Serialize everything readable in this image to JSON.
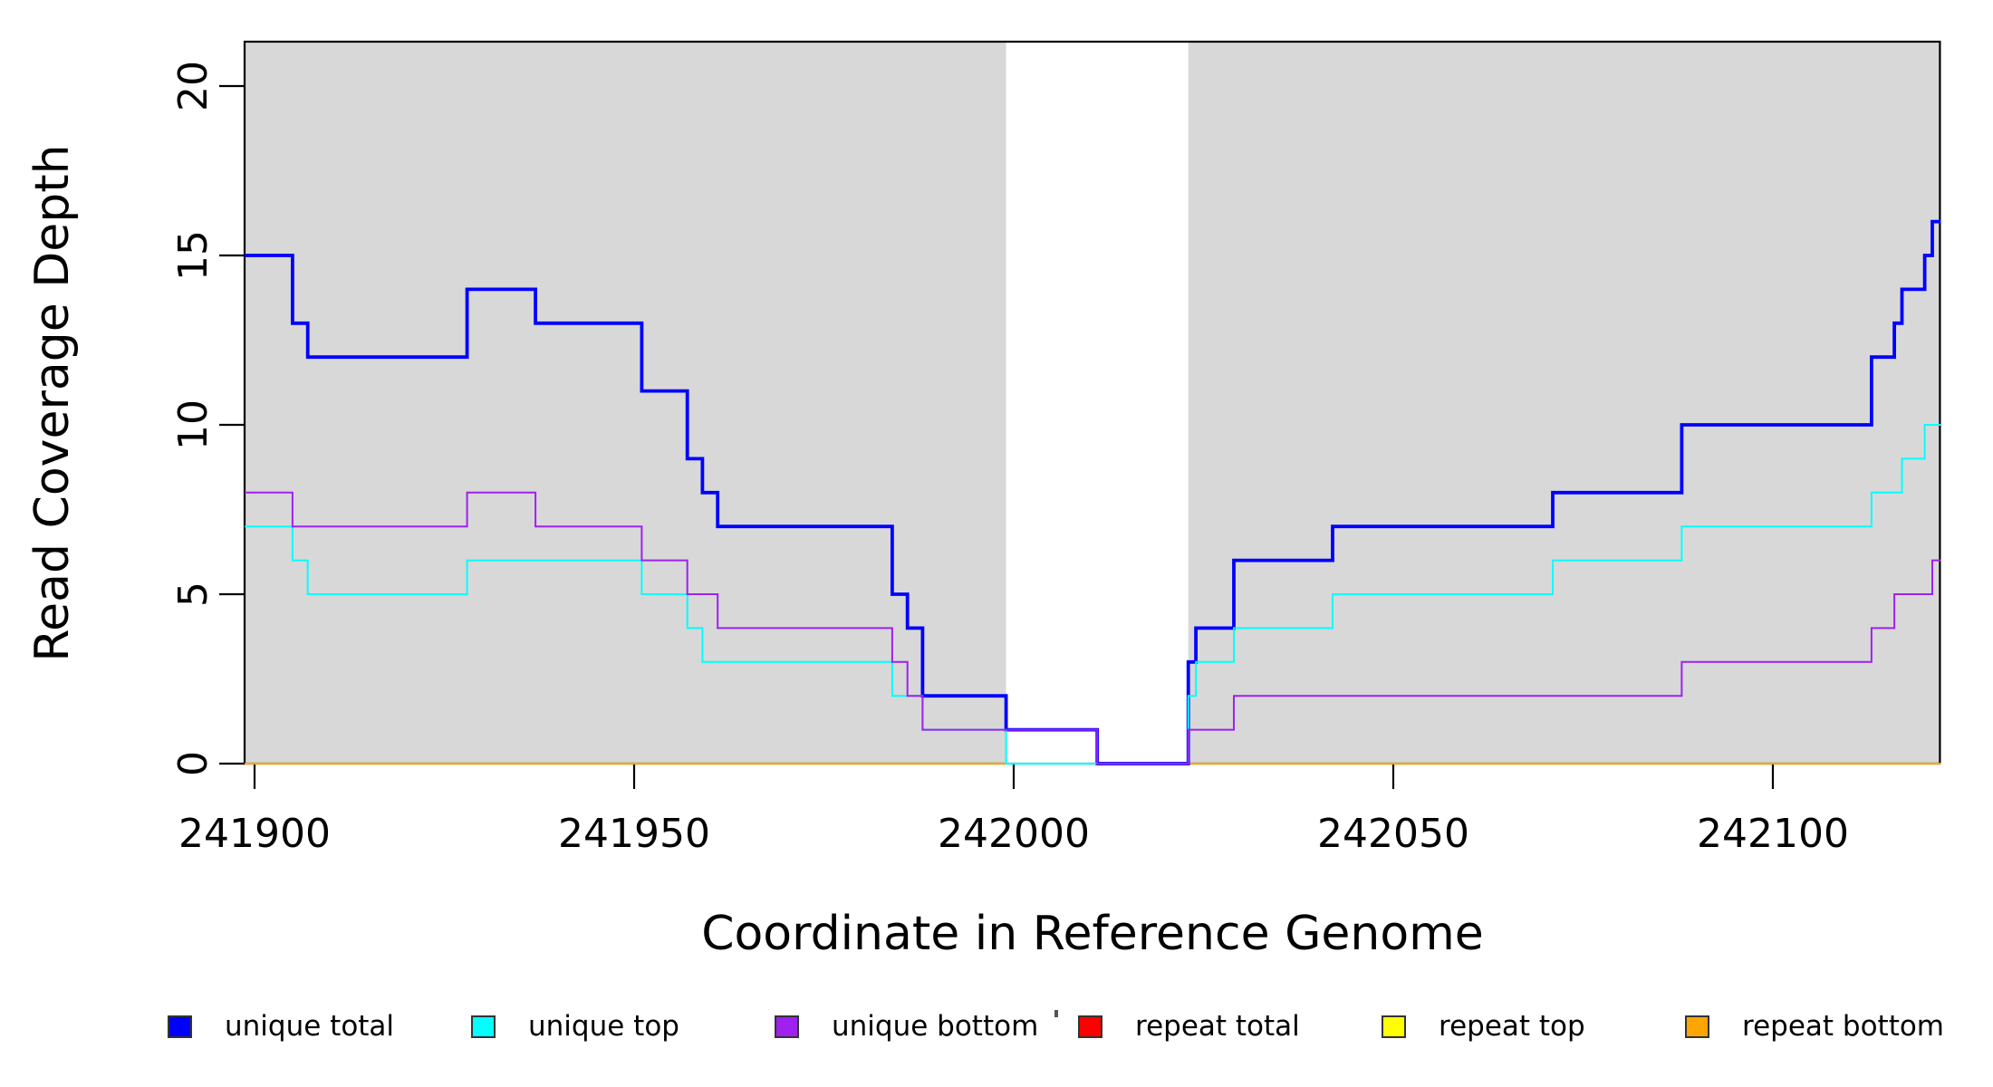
{
  "figure": {
    "title": "",
    "x_tick_labels": [
      "241900",
      "241950",
      "242000",
      "242050",
      "242100"
    ],
    "y_tick_labels": [
      "0",
      "5",
      "10",
      "15",
      "20"
    ]
  },
  "legend": {
    "items": [
      {
        "id": "unique-total",
        "label": "unique total",
        "color": "#0000FF"
      },
      {
        "id": "unique-top",
        "label": "unique top",
        "color": "#00FFFF"
      },
      {
        "id": "unique-bottom",
        "label": "unique bottom",
        "color": "#A020F0"
      },
      {
        "id": "repeat-total",
        "label": "repeat total",
        "color": "#FF0000"
      },
      {
        "id": "repeat-top",
        "label": "repeat top",
        "color": "#FFFF00"
      },
      {
        "id": "repeat-bottom",
        "label": "repeat bottom",
        "color": "#FFA500"
      }
    ]
  },
  "chart_data": {
    "type": "line",
    "step": true,
    "title": "",
    "xlabel": "Coordinate in Reference Genome",
    "ylabel": "Read Coverage Depth",
    "xlim": [
      241898.7,
      242122.1
    ],
    "ylim": [
      0,
      21.3
    ],
    "x_ticks": [
      241900,
      241950,
      242000,
      242050,
      242100
    ],
    "y_ticks": [
      0,
      5,
      10,
      15,
      20
    ],
    "grid": false,
    "legend_position": "bottom",
    "shaded_color": "#D8D8D8",
    "shaded_regions": [
      [
        241898.7,
        241999
      ],
      [
        242023,
        242122.1
      ]
    ],
    "series_draw_order": [
      "repeat total",
      "repeat top",
      "repeat bottom",
      "unique total",
      "unique top",
      "unique bottom"
    ],
    "series": [
      {
        "id": "unique-total",
        "name": "unique total",
        "color": "#0000FF",
        "width": 3.8,
        "steps": [
          [
            241898.7,
            15
          ],
          [
            241905,
            13
          ],
          [
            241907,
            12
          ],
          [
            241928,
            14
          ],
          [
            241937,
            13
          ],
          [
            241951,
            11
          ],
          [
            241957,
            9
          ],
          [
            241959,
            8
          ],
          [
            241961,
            7
          ],
          [
            241984,
            5
          ],
          [
            241986,
            4
          ],
          [
            241988,
            2
          ],
          [
            241999,
            1
          ],
          [
            242011,
            0
          ],
          [
            242023,
            3
          ],
          [
            242024,
            4
          ],
          [
            242029,
            6
          ],
          [
            242042,
            7
          ],
          [
            242071,
            8
          ],
          [
            242088,
            10
          ],
          [
            242113,
            12
          ],
          [
            242116,
            13
          ],
          [
            242117,
            14
          ],
          [
            242120,
            15
          ],
          [
            242121,
            16
          ],
          [
            242122.1,
            16
          ]
        ]
      },
      {
        "id": "unique-top",
        "name": "unique top",
        "color": "#00FFFF",
        "width": 2.0,
        "steps": [
          [
            241898.7,
            7
          ],
          [
            241905,
            6
          ],
          [
            241907,
            5
          ],
          [
            241928,
            6
          ],
          [
            241951,
            5
          ],
          [
            241957,
            4
          ],
          [
            241959,
            3
          ],
          [
            241984,
            2
          ],
          [
            241988,
            1
          ],
          [
            241999,
            0
          ],
          [
            242023,
            2
          ],
          [
            242024,
            3
          ],
          [
            242029,
            4
          ],
          [
            242042,
            5
          ],
          [
            242071,
            6
          ],
          [
            242088,
            7
          ],
          [
            242113,
            8
          ],
          [
            242117,
            9
          ],
          [
            242120,
            10
          ],
          [
            242122.1,
            10
          ]
        ]
      },
      {
        "id": "unique-bottom",
        "name": "unique bottom",
        "color": "#A020F0",
        "width": 2.0,
        "steps": [
          [
            241898.7,
            8
          ],
          [
            241905,
            7
          ],
          [
            241928,
            8
          ],
          [
            241937,
            7
          ],
          [
            241951,
            6
          ],
          [
            241957,
            5
          ],
          [
            241961,
            4
          ],
          [
            241984,
            3
          ],
          [
            241986,
            2
          ],
          [
            241988,
            1
          ],
          [
            242011,
            0
          ],
          [
            242023,
            1
          ],
          [
            242029,
            2
          ],
          [
            242088,
            3
          ],
          [
            242113,
            4
          ],
          [
            242116,
            5
          ],
          [
            242121,
            6
          ],
          [
            242122.1,
            6
          ]
        ]
      },
      {
        "id": "repeat-total",
        "name": "repeat total",
        "color": "#FF0000",
        "width": 2.0,
        "steps": [
          [
            241898.7,
            0
          ],
          [
            242122.1,
            0
          ]
        ]
      },
      {
        "id": "repeat-top",
        "name": "repeat top",
        "color": "#FFFF00",
        "width": 2.0,
        "steps": [
          [
            241898.7,
            0
          ],
          [
            242122.1,
            0
          ]
        ]
      },
      {
        "id": "repeat-bottom",
        "name": "repeat bottom",
        "color": "#FFA500",
        "width": 2.0,
        "steps": [
          [
            241898.7,
            0
          ],
          [
            242122.1,
            0
          ]
        ]
      }
    ]
  }
}
